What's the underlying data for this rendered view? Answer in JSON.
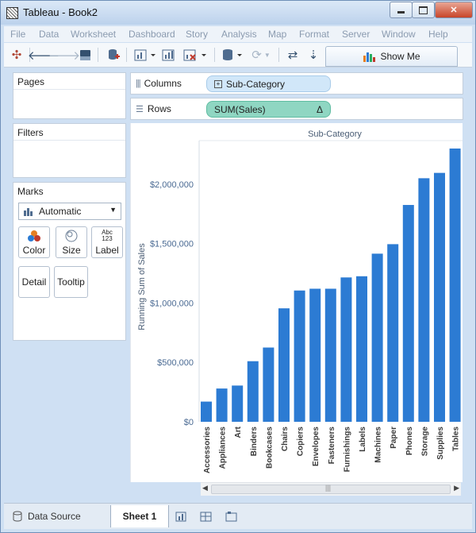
{
  "window": {
    "title": "Tableau - Book2",
    "minimize": "0",
    "maximize": "1",
    "close": "r"
  },
  "menu": [
    "File",
    "Data",
    "Worksheet",
    "Dashboard",
    "Story",
    "Analysis",
    "Map",
    "Format",
    "Server",
    "Window",
    "Help"
  ],
  "toolbar": {
    "show_me_label": "Show Me"
  },
  "side": {
    "pages_title": "Pages",
    "filters_title": "Filters",
    "marks_title": "Marks",
    "mark_type": "Automatic",
    "mark_buttons": {
      "color": "Color",
      "size": "Size",
      "label": "Label",
      "detail": "Detail",
      "tooltip": "Tooltip",
      "label_icon_text": "Abc\n123"
    }
  },
  "shelves": {
    "columns_label": "Columns",
    "columns_pill": "Sub-Category",
    "rows_label": "Rows",
    "rows_pill": "SUM(Sales)",
    "rows_pill_icon": "Δ"
  },
  "chart_data": {
    "type": "bar",
    "header": "Sub-Category",
    "ylabel": "Running Sum of Sales",
    "categories": [
      "Accessories",
      "Appliances",
      "Art",
      "Binders",
      "Bookcases",
      "Chairs",
      "Copiers",
      "Envelopes",
      "Fasteners",
      "Furnishings",
      "Labels",
      "Machines",
      "Paper",
      "Phones",
      "Storage",
      "Supplies",
      "Tables"
    ],
    "values": [
      170000,
      280000,
      305000,
      510000,
      625000,
      955000,
      1105000,
      1120000,
      1120000,
      1215000,
      1225000,
      1415000,
      1495000,
      1825000,
      2050000,
      2095000,
      2300000
    ],
    "yticks": [
      0,
      500000,
      1000000,
      1500000,
      2000000
    ],
    "ytick_labels": [
      "$0",
      "$500,000",
      "$1,000,000",
      "$1,500,000",
      "$2,000,000"
    ],
    "ylim": [
      0,
      2340000
    ],
    "bar_color": "#2c7bd3"
  },
  "statusbar": {
    "data_source": "Data Source",
    "sheet": "Sheet 1"
  }
}
